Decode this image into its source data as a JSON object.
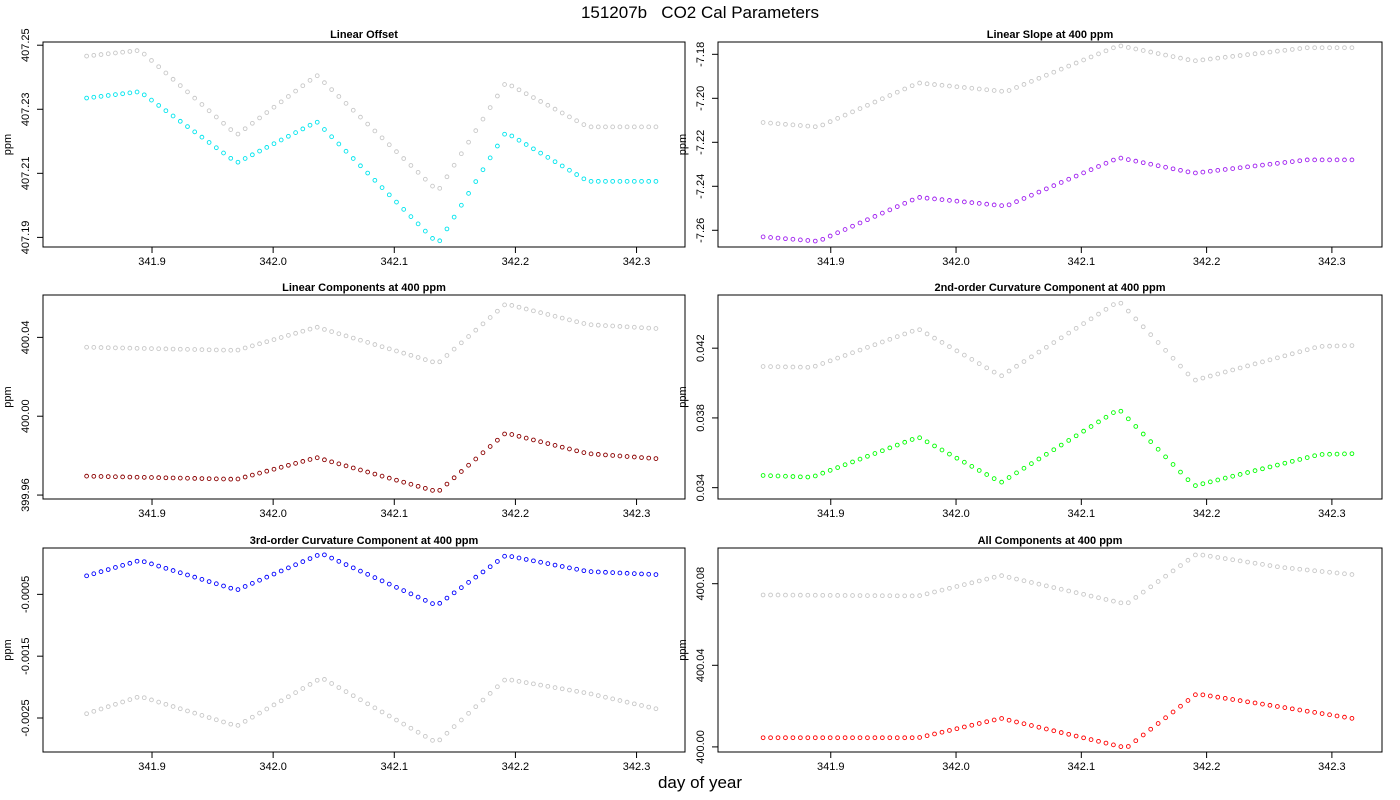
{
  "page": {
    "title": "151207b   CO2 Cal Parameters",
    "xlabel": "day of year"
  },
  "colors": {
    "reference": "#c8c8c8",
    "cyan": "#00e5ee",
    "purple": "#a020f0",
    "darkred": "#8b0000",
    "green": "#00ff00",
    "blue": "#0000ff",
    "red": "#ff0000"
  },
  "chart_data": [
    {
      "type": "scatter",
      "title": "Linear Offset",
      "ylabel": "ppm",
      "xlim": [
        341.81,
        342.34
      ],
      "ylim": [
        407.187,
        407.251
      ],
      "xticks": [
        341.9,
        342.0,
        342.1,
        342.2,
        342.3
      ],
      "yticks": [
        407.19,
        407.21,
        407.23,
        407.25
      ],
      "yticklabels": [
        "407.19",
        "407.21",
        "407.23",
        "407.25"
      ],
      "series": [
        {
          "color": "reference",
          "values": [
            [
              341.846,
              407.2466
            ],
            [
              341.89,
              407.2484
            ],
            [
              341.97,
              407.222
            ],
            [
              342.036,
              407.2406
            ],
            [
              342.136,
              407.2044
            ],
            [
              342.192,
              407.2383
            ],
            [
              342.26,
              407.2245
            ],
            [
              342.316,
              407.2245
            ]
          ]
        },
        {
          "color": "cyan",
          "values": [
            [
              341.846,
              407.2335
            ],
            [
              341.89,
              407.2355
            ],
            [
              341.97,
              407.2133
            ],
            [
              342.036,
              407.2261
            ],
            [
              342.136,
              407.188
            ],
            [
              342.192,
              407.2228
            ],
            [
              342.26,
              407.2075
            ],
            [
              342.316,
              407.2075
            ]
          ]
        }
      ]
    },
    {
      "type": "scatter",
      "title": "Linear Slope at 400 ppm",
      "ylabel": "ppm",
      "xlim": [
        341.81,
        342.34
      ],
      "ylim": [
        -7.2676,
        -7.1744
      ],
      "xticks": [
        341.9,
        342.0,
        342.1,
        342.2,
        342.3
      ],
      "yticks": [
        -7.26,
        -7.24,
        -7.22,
        -7.2,
        -7.18
      ],
      "yticklabels": [
        "-7.26",
        "-7.24",
        "-7.22",
        "-7.20",
        "-7.18"
      ],
      "series": [
        {
          "color": "reference",
          "values": [
            [
              341.846,
              -7.211
            ],
            [
              341.89,
              -7.213
            ],
            [
              341.97,
              -7.193
            ],
            [
              342.04,
              -7.197
            ],
            [
              342.13,
              -7.176
            ],
            [
              342.19,
              -7.183
            ],
            [
              342.28,
              -7.177
            ],
            [
              342.316,
              -7.177
            ]
          ]
        },
        {
          "color": "purple",
          "values": [
            [
              341.846,
              -7.263
            ],
            [
              341.89,
              -7.265
            ],
            [
              341.97,
              -7.245
            ],
            [
              342.04,
              -7.249
            ],
            [
              342.13,
              -7.227
            ],
            [
              342.19,
              -7.234
            ],
            [
              342.28,
              -7.228
            ],
            [
              342.316,
              -7.228
            ]
          ]
        }
      ]
    },
    {
      "type": "scatter",
      "title": "Linear Components at 400 ppm",
      "ylabel": "ppm",
      "xlim": [
        341.81,
        342.34
      ],
      "ylim": [
        399.958,
        400.0615
      ],
      "xticks": [
        341.9,
        342.0,
        342.1,
        342.2,
        342.3
      ],
      "yticks": [
        399.96,
        400.0,
        400.04
      ],
      "yticklabels": [
        "399.96",
        "400.00",
        "400.04"
      ],
      "series": [
        {
          "color": "reference",
          "values": [
            [
              341.846,
              400.035
            ],
            [
              341.97,
              400.0334
            ],
            [
              342.036,
              400.0452
            ],
            [
              342.136,
              400.0268
            ],
            [
              342.192,
              400.057
            ],
            [
              342.26,
              400.0465
            ],
            [
              342.316,
              400.0445
            ]
          ]
        },
        {
          "color": "darkred",
          "values": [
            [
              341.846,
              399.9696
            ],
            [
              341.97,
              399.968
            ],
            [
              342.036,
              399.979
            ],
            [
              342.136,
              399.9616
            ],
            [
              342.192,
              399.9915
            ],
            [
              342.26,
              399.981
            ],
            [
              342.316,
              399.9785
            ]
          ]
        }
      ]
    },
    {
      "type": "scatter",
      "title": "2nd-order Curvature Component at 400 ppm",
      "ylabel": "ppm",
      "xlim": [
        341.81,
        342.34
      ],
      "ylim": [
        0.03335,
        0.04505
      ],
      "xticks": [
        341.9,
        342.0,
        342.1,
        342.2,
        342.3
      ],
      "yticks": [
        0.034,
        0.038,
        0.042
      ],
      "yticklabels": [
        "0.034",
        "0.038",
        "0.042"
      ],
      "series": [
        {
          "color": "reference",
          "values": [
            [
              341.846,
              0.04095
            ],
            [
              341.885,
              0.0409
            ],
            [
              341.97,
              0.0431
            ],
            [
              342.036,
              0.0404
            ],
            [
              342.13,
              0.0447
            ],
            [
              342.19,
              0.04015
            ],
            [
              342.29,
              0.0421
            ],
            [
              342.316,
              0.04215
            ]
          ]
        },
        {
          "color": "green",
          "values": [
            [
              341.846,
              0.0347
            ],
            [
              341.885,
              0.0346
            ],
            [
              341.97,
              0.0369
            ],
            [
              342.036,
              0.0343
            ],
            [
              342.13,
              0.0385
            ],
            [
              342.19,
              0.0341
            ],
            [
              342.29,
              0.0359
            ],
            [
              342.316,
              0.03595
            ]
          ]
        }
      ]
    },
    {
      "type": "scatter",
      "title": "3rd-order Curvature Component at 400 ppm",
      "ylabel": "ppm",
      "xlim": [
        341.81,
        342.34
      ],
      "ylim": [
        -0.00305,
        0.00025
      ],
      "xticks": [
        341.9,
        342.0,
        342.1,
        342.2,
        342.3
      ],
      "yticks": [
        -0.0025,
        -0.0015,
        -0.0005
      ],
      "yticklabels": [
        "-0.0025",
        "-0.0015",
        "-0.0005"
      ],
      "series": [
        {
          "color": "reference",
          "values": [
            [
              341.846,
              -0.00243
            ],
            [
              341.89,
              -0.00215
            ],
            [
              341.97,
              -0.00263
            ],
            [
              342.04,
              -0.00185
            ],
            [
              342.135,
              -0.0029
            ],
            [
              342.192,
              -0.00187
            ],
            [
              342.26,
              -0.0021
            ],
            [
              342.316,
              -0.00235
            ]
          ]
        },
        {
          "color": "blue",
          "values": [
            [
              341.846,
              -0.0002
            ],
            [
              341.89,
              5e-05
            ],
            [
              341.97,
              -0.00043
            ],
            [
              342.04,
              0.00016
            ],
            [
              342.135,
              -0.00068
            ],
            [
              342.192,
              0.00013
            ],
            [
              342.26,
              -0.00013
            ],
            [
              342.316,
              -0.00018
            ]
          ]
        }
      ]
    },
    {
      "type": "scatter",
      "title": "All Components at 400 ppm",
      "ylabel": "ppm",
      "xlim": [
        341.81,
        342.34
      ],
      "ylim": [
        399.9975,
        400.0975
      ],
      "xticks": [
        341.9,
        342.0,
        342.1,
        342.2,
        342.3
      ],
      "yticks": [
        400.0,
        400.04,
        400.08
      ],
      "yticklabels": [
        "400.00",
        "400.04",
        "400.08"
      ],
      "series": [
        {
          "color": "reference",
          "values": [
            [
              341.846,
              400.0745
            ],
            [
              341.97,
              400.074
            ],
            [
              342.036,
              400.084
            ],
            [
              342.136,
              400.07
            ],
            [
              342.192,
              400.0945
            ],
            [
              342.26,
              400.088
            ],
            [
              342.316,
              400.0845
            ]
          ]
        },
        {
          "color": "red",
          "values": [
            [
              341.846,
              400.0045
            ],
            [
              341.97,
              400.0045
            ],
            [
              342.036,
              400.014
            ],
            [
              342.136,
              399.9995
            ],
            [
              342.192,
              400.026
            ],
            [
              342.26,
              400.0195
            ],
            [
              342.316,
              400.014
            ]
          ]
        }
      ]
    }
  ]
}
